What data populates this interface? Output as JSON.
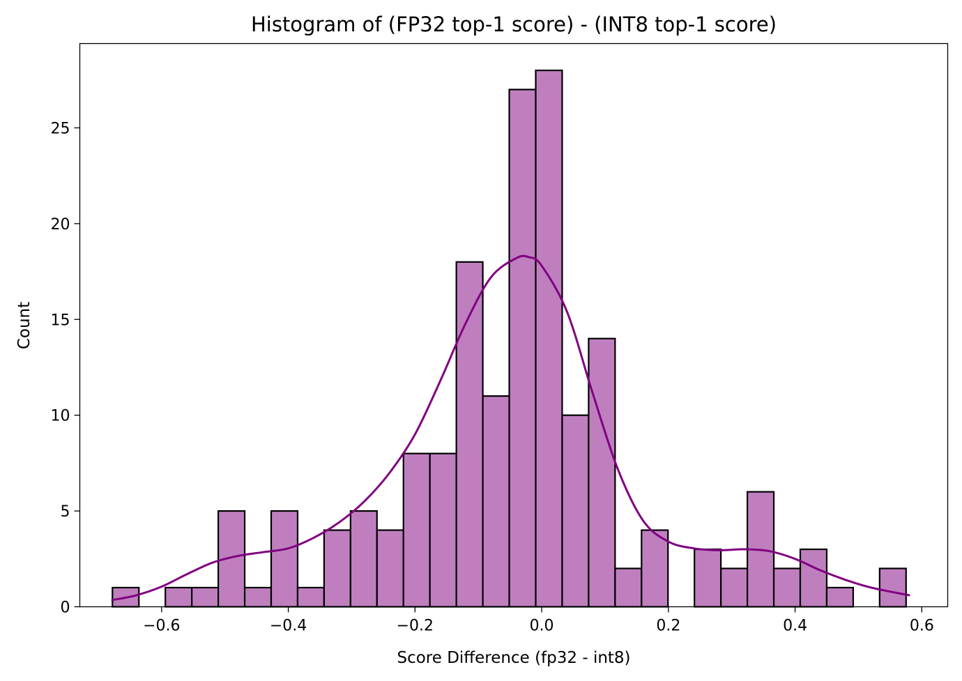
{
  "chart_data": {
    "type": "bar",
    "title": "Histogram of (FP32 top-1 score) - (INT8 top-1 score)",
    "xlabel": "Score Difference (fp32 - int8)",
    "ylabel": "Count",
    "xlim": [
      -0.7291,
      0.6409
    ],
    "ylim": [
      0,
      29.4
    ],
    "xticks": [
      -0.6,
      -0.4,
      -0.2,
      0.0,
      0.2,
      0.4,
      0.6
    ],
    "xtick_labels": [
      "−0.6",
      "−0.4",
      "−0.2",
      "0.0",
      "0.2",
      "0.4",
      "0.6"
    ],
    "yticks": [
      0,
      5,
      10,
      15,
      20,
      25
    ],
    "ytick_labels": [
      "0",
      "5",
      "10",
      "15",
      "20",
      "25"
    ],
    "bin_start": -0.6776,
    "bin_width": 0.04176,
    "counts": [
      1,
      0,
      1,
      1,
      5,
      1,
      5,
      1,
      4,
      5,
      4,
      8,
      8,
      18,
      11,
      27,
      28,
      10,
      14,
      2,
      4,
      0,
      3,
      2,
      6,
      2,
      3,
      1,
      0,
      2
    ],
    "bar_color": "#bf7fbf",
    "kde": {
      "color": "#800080",
      "x": [
        -0.678,
        -0.64,
        -0.6,
        -0.56,
        -0.52,
        -0.48,
        -0.44,
        -0.4,
        -0.36,
        -0.32,
        -0.28,
        -0.24,
        -0.2,
        -0.16,
        -0.12,
        -0.08,
        -0.04,
        -0.02,
        0.0,
        0.04,
        0.08,
        0.12,
        0.16,
        0.2,
        0.24,
        0.28,
        0.32,
        0.36,
        0.4,
        0.44,
        0.48,
        0.52,
        0.58
      ],
      "y": [
        0.35,
        0.6,
        1.05,
        1.7,
        2.3,
        2.65,
        2.85,
        3.05,
        3.6,
        4.4,
        5.5,
        7.0,
        9.0,
        11.8,
        14.8,
        17.2,
        18.2,
        18.25,
        17.8,
        15.4,
        11.2,
        7.2,
        4.5,
        3.4,
        3.05,
        2.95,
        3.0,
        2.9,
        2.5,
        1.9,
        1.4,
        1.0,
        0.6
      ]
    }
  }
}
